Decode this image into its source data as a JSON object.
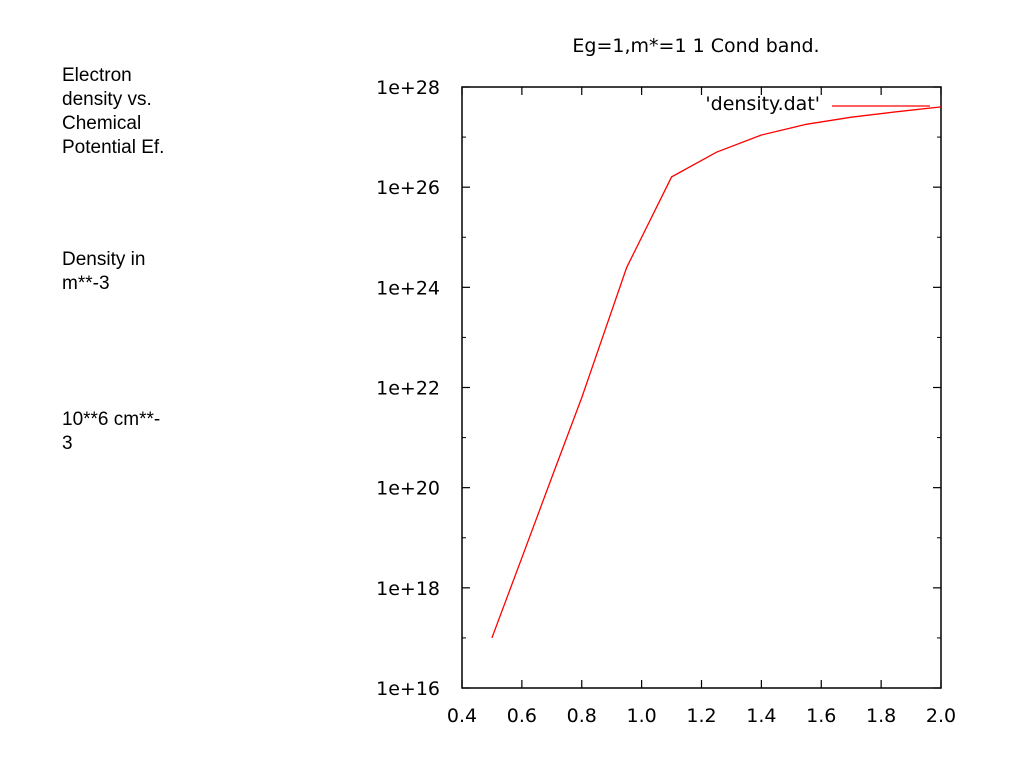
{
  "notes": [
    "Electron\ndensity vs.\nChemical\nPotential Ef.",
    "Density in\nm**-3",
    "10**6 cm**-\n3"
  ],
  "chart_data": {
    "type": "line",
    "title": "Eg=1,m*=1 1 Cond band.",
    "xlabel": "",
    "ylabel": "",
    "xlim": [
      0.4,
      2.0
    ],
    "ylim": [
      1e+16,
      1e+28
    ],
    "yscale": "log",
    "grid": false,
    "legend": "top-right",
    "x_ticks": [
      "0.4",
      "0.6",
      "0.8",
      "1.0",
      "1.2",
      "1.4",
      "1.6",
      "1.8",
      "2.0"
    ],
    "y_ticks": [
      "1e+16",
      "1e+18",
      "1e+20",
      "1e+22",
      "1e+24",
      "1e+26",
      "1e+28"
    ],
    "series": [
      {
        "name": "'density.dat'",
        "color": "#ff0000",
        "x": [
          0.5,
          0.6,
          0.7,
          0.8,
          0.95,
          1.1,
          1.25,
          1.4,
          1.55,
          1.7,
          1.85,
          2.0
        ],
        "y": [
          1e+17,
          4e+18,
          1.6e+20,
          6.3e+21,
          2.5e+24,
          1.6e+26,
          5e+26,
          1.1e+27,
          1.8e+27,
          2.5e+27,
          3.2e+27,
          4e+27
        ]
      }
    ]
  }
}
